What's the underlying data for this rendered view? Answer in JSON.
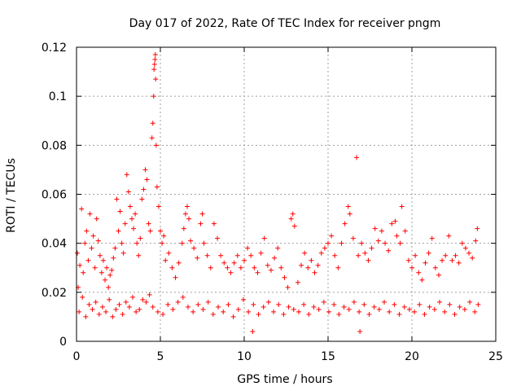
{
  "chart_data": {
    "type": "scatter",
    "title": "Day 017 of 2022, Rate Of TEC Index for receiver pngm",
    "xlabel": "GPS time / hours",
    "ylabel": "ROTI / TECUs",
    "xlim": [
      0,
      25
    ],
    "ylim": [
      0,
      0.12
    ],
    "xticks": [
      0,
      5,
      10,
      15,
      20,
      25
    ],
    "yticks": [
      0,
      0.02,
      0.04,
      0.06,
      0.08,
      0.1,
      0.12
    ],
    "xtick_labels": [
      "0",
      "5",
      "10",
      "15",
      "20",
      "25"
    ],
    "ytick_labels": [
      "0",
      "0.02",
      "0.04",
      "0.06",
      "0.08",
      "0.1",
      "0.12"
    ],
    "grid": true,
    "marker": "+",
    "series_color": "#ff0000",
    "series": [
      {
        "name": "ROTI",
        "points": [
          [
            0.05,
            0.036
          ],
          [
            0.1,
            0.022
          ],
          [
            0.2,
            0.031
          ],
          [
            0.3,
            0.054
          ],
          [
            0.4,
            0.028
          ],
          [
            0.5,
            0.04
          ],
          [
            0.6,
            0.045
          ],
          [
            0.7,
            0.033
          ],
          [
            0.8,
            0.052
          ],
          [
            0.9,
            0.038
          ],
          [
            1.0,
            0.043
          ],
          [
            1.1,
            0.03
          ],
          [
            1.2,
            0.05
          ],
          [
            1.3,
            0.041
          ],
          [
            1.4,
            0.035
          ],
          [
            1.5,
            0.028
          ],
          [
            1.6,
            0.033
          ],
          [
            1.7,
            0.025
          ],
          [
            1.8,
            0.03
          ],
          [
            1.9,
            0.022
          ],
          [
            2.0,
            0.027
          ],
          [
            2.1,
            0.029
          ],
          [
            2.2,
            0.034
          ],
          [
            2.3,
            0.038
          ],
          [
            2.4,
            0.058
          ],
          [
            2.5,
            0.045
          ],
          [
            2.6,
            0.053
          ],
          [
            2.7,
            0.04
          ],
          [
            2.8,
            0.036
          ],
          [
            2.9,
            0.048
          ],
          [
            3.0,
            0.068
          ],
          [
            3.1,
            0.061
          ],
          [
            3.2,
            0.055
          ],
          [
            3.3,
            0.05
          ],
          [
            3.4,
            0.046
          ],
          [
            3.5,
            0.052
          ],
          [
            3.6,
            0.04
          ],
          [
            3.7,
            0.035
          ],
          [
            3.8,
            0.042
          ],
          [
            3.9,
            0.058
          ],
          [
            4.0,
            0.062
          ],
          [
            4.1,
            0.07
          ],
          [
            4.2,
            0.066
          ],
          [
            4.3,
            0.048
          ],
          [
            4.4,
            0.045
          ],
          [
            4.5,
            0.083
          ],
          [
            4.55,
            0.089
          ],
          [
            4.6,
            0.1
          ],
          [
            4.62,
            0.111
          ],
          [
            4.65,
            0.113
          ],
          [
            4.68,
            0.115
          ],
          [
            4.7,
            0.117
          ],
          [
            4.72,
            0.107
          ],
          [
            4.75,
            0.08
          ],
          [
            4.8,
            0.063
          ],
          [
            4.9,
            0.055
          ],
          [
            5.0,
            0.045
          ],
          [
            5.1,
            0.04
          ],
          [
            5.2,
            0.043
          ],
          [
            5.3,
            0.033
          ],
          [
            5.5,
            0.036
          ],
          [
            5.7,
            0.03
          ],
          [
            5.9,
            0.026
          ],
          [
            6.1,
            0.032
          ],
          [
            6.3,
            0.04
          ],
          [
            6.4,
            0.046
          ],
          [
            6.5,
            0.052
          ],
          [
            6.6,
            0.055
          ],
          [
            6.7,
            0.05
          ],
          [
            6.8,
            0.041
          ],
          [
            7.0,
            0.038
          ],
          [
            7.2,
            0.034
          ],
          [
            7.4,
            0.048
          ],
          [
            7.5,
            0.052
          ],
          [
            7.6,
            0.04
          ],
          [
            7.8,
            0.035
          ],
          [
            8.0,
            0.03
          ],
          [
            8.2,
            0.048
          ],
          [
            8.4,
            0.042
          ],
          [
            8.6,
            0.035
          ],
          [
            8.8,
            0.032
          ],
          [
            9.0,
            0.03
          ],
          [
            9.2,
            0.028
          ],
          [
            9.4,
            0.032
          ],
          [
            9.6,
            0.035
          ],
          [
            9.8,
            0.03
          ],
          [
            10.0,
            0.033
          ],
          [
            10.2,
            0.038
          ],
          [
            10.4,
            0.035
          ],
          [
            10.6,
            0.03
          ],
          [
            10.8,
            0.028
          ],
          [
            11.0,
            0.036
          ],
          [
            11.2,
            0.042
          ],
          [
            11.4,
            0.031
          ],
          [
            11.6,
            0.029
          ],
          [
            11.8,
            0.034
          ],
          [
            12.0,
            0.038
          ],
          [
            12.2,
            0.03
          ],
          [
            12.4,
            0.026
          ],
          [
            12.6,
            0.022
          ],
          [
            12.8,
            0.05
          ],
          [
            12.9,
            0.052
          ],
          [
            13.0,
            0.047
          ],
          [
            13.2,
            0.024
          ],
          [
            13.4,
            0.031
          ],
          [
            13.6,
            0.036
          ],
          [
            13.8,
            0.03
          ],
          [
            14.0,
            0.033
          ],
          [
            14.2,
            0.028
          ],
          [
            14.4,
            0.031
          ],
          [
            14.6,
            0.036
          ],
          [
            14.8,
            0.038
          ],
          [
            15.0,
            0.04
          ],
          [
            15.2,
            0.043
          ],
          [
            15.4,
            0.035
          ],
          [
            15.6,
            0.03
          ],
          [
            15.8,
            0.04
          ],
          [
            16.0,
            0.048
          ],
          [
            16.2,
            0.055
          ],
          [
            16.3,
            0.052
          ],
          [
            16.5,
            0.042
          ],
          [
            16.7,
            0.075
          ],
          [
            16.8,
            0.035
          ],
          [
            17.0,
            0.04
          ],
          [
            17.2,
            0.036
          ],
          [
            17.4,
            0.033
          ],
          [
            17.6,
            0.038
          ],
          [
            17.8,
            0.046
          ],
          [
            18.0,
            0.041
          ],
          [
            18.2,
            0.045
          ],
          [
            18.4,
            0.04
          ],
          [
            18.6,
            0.037
          ],
          [
            18.8,
            0.048
          ],
          [
            19.0,
            0.049
          ],
          [
            19.1,
            0.043
          ],
          [
            19.3,
            0.04
          ],
          [
            19.4,
            0.055
          ],
          [
            19.6,
            0.045
          ],
          [
            19.8,
            0.033
          ],
          [
            20.0,
            0.03
          ],
          [
            20.2,
            0.035
          ],
          [
            20.4,
            0.028
          ],
          [
            20.6,
            0.025
          ],
          [
            20.8,
            0.032
          ],
          [
            21.0,
            0.036
          ],
          [
            21.2,
            0.042
          ],
          [
            21.4,
            0.03
          ],
          [
            21.6,
            0.027
          ],
          [
            21.8,
            0.033
          ],
          [
            22.0,
            0.035
          ],
          [
            22.2,
            0.043
          ],
          [
            22.4,
            0.033
          ],
          [
            22.6,
            0.035
          ],
          [
            22.8,
            0.032
          ],
          [
            23.0,
            0.04
          ],
          [
            23.2,
            0.038
          ],
          [
            23.4,
            0.036
          ],
          [
            23.6,
            0.034
          ],
          [
            23.8,
            0.041
          ],
          [
            23.9,
            0.046
          ],
          [
            0.15,
            0.012
          ],
          [
            0.35,
            0.018
          ],
          [
            0.55,
            0.01
          ],
          [
            0.75,
            0.015
          ],
          [
            0.95,
            0.013
          ],
          [
            1.15,
            0.016
          ],
          [
            1.35,
            0.011
          ],
          [
            1.55,
            0.014
          ],
          [
            1.75,
            0.012
          ],
          [
            1.95,
            0.017
          ],
          [
            2.15,
            0.01
          ],
          [
            2.35,
            0.013
          ],
          [
            2.55,
            0.015
          ],
          [
            2.75,
            0.011
          ],
          [
            2.95,
            0.016
          ],
          [
            3.15,
            0.014
          ],
          [
            3.35,
            0.018
          ],
          [
            3.55,
            0.012
          ],
          [
            3.75,
            0.013
          ],
          [
            3.95,
            0.017
          ],
          [
            4.15,
            0.016
          ],
          [
            4.35,
            0.019
          ],
          [
            4.55,
            0.014
          ],
          [
            4.85,
            0.012
          ],
          [
            5.15,
            0.011
          ],
          [
            5.45,
            0.015
          ],
          [
            5.75,
            0.013
          ],
          [
            6.05,
            0.016
          ],
          [
            6.35,
            0.018
          ],
          [
            6.65,
            0.014
          ],
          [
            6.95,
            0.012
          ],
          [
            7.25,
            0.015
          ],
          [
            7.55,
            0.013
          ],
          [
            7.85,
            0.016
          ],
          [
            8.15,
            0.011
          ],
          [
            8.45,
            0.014
          ],
          [
            8.75,
            0.012
          ],
          [
            9.05,
            0.015
          ],
          [
            9.35,
            0.01
          ],
          [
            9.65,
            0.013
          ],
          [
            9.95,
            0.017
          ],
          [
            10.25,
            0.012
          ],
          [
            10.55,
            0.015
          ],
          [
            10.85,
            0.011
          ],
          [
            11.15,
            0.014
          ],
          [
            11.45,
            0.016
          ],
          [
            11.75,
            0.012
          ],
          [
            12.05,
            0.015
          ],
          [
            12.35,
            0.011
          ],
          [
            12.65,
            0.014
          ],
          [
            12.95,
            0.013
          ],
          [
            13.25,
            0.012
          ],
          [
            13.55,
            0.015
          ],
          [
            13.85,
            0.011
          ],
          [
            14.15,
            0.014
          ],
          [
            14.45,
            0.013
          ],
          [
            14.75,
            0.016
          ],
          [
            15.05,
            0.012
          ],
          [
            15.35,
            0.015
          ],
          [
            15.65,
            0.011
          ],
          [
            15.95,
            0.014
          ],
          [
            16.25,
            0.013
          ],
          [
            16.55,
            0.016
          ],
          [
            16.85,
            0.012
          ],
          [
            17.15,
            0.015
          ],
          [
            17.45,
            0.011
          ],
          [
            17.75,
            0.014
          ],
          [
            18.05,
            0.013
          ],
          [
            18.35,
            0.016
          ],
          [
            18.65,
            0.012
          ],
          [
            18.95,
            0.015
          ],
          [
            19.25,
            0.011
          ],
          [
            19.55,
            0.014
          ],
          [
            19.85,
            0.013
          ],
          [
            20.15,
            0.012
          ],
          [
            20.45,
            0.015
          ],
          [
            20.75,
            0.011
          ],
          [
            21.05,
            0.014
          ],
          [
            21.35,
            0.013
          ],
          [
            21.65,
            0.016
          ],
          [
            21.95,
            0.012
          ],
          [
            22.25,
            0.015
          ],
          [
            22.55,
            0.011
          ],
          [
            22.85,
            0.014
          ],
          [
            23.15,
            0.013
          ],
          [
            23.45,
            0.016
          ],
          [
            23.75,
            0.012
          ],
          [
            23.95,
            0.015
          ],
          [
            10.5,
            0.004
          ],
          [
            16.9,
            0.004
          ]
        ]
      }
    ]
  }
}
